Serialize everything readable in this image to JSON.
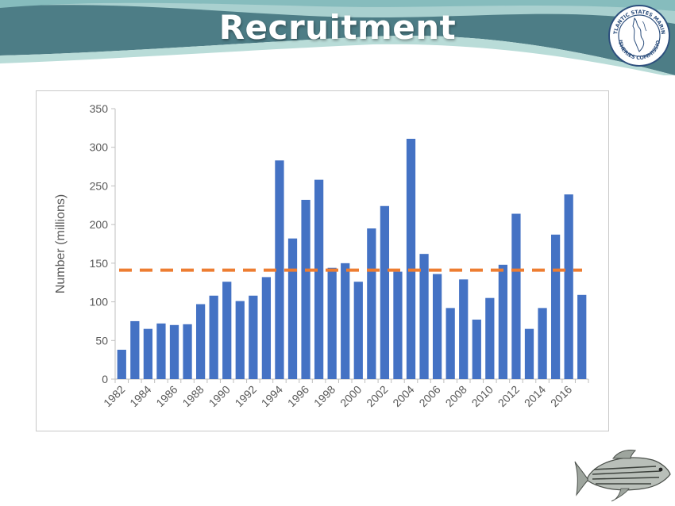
{
  "slide": {
    "title": "Recruitment"
  },
  "logo": {
    "name": "atlantic-states-marine-fisheries-commission-seal",
    "text": "ATLANTIC STATES MARINE FISHERIES COMMISSION"
  },
  "fish": {
    "icon": "striped-bass-icon"
  },
  "colors": {
    "bar": "#4472C4",
    "reference_line": "#ED7D31",
    "header_dark": "#4d7d86",
    "header_light": "#a9d0cf"
  },
  "chart_data": {
    "type": "bar",
    "title": "",
    "xlabel": "",
    "ylabel": "Number (millions)",
    "ylim": [
      0,
      350
    ],
    "yticks": [
      0,
      50,
      100,
      150,
      200,
      250,
      300,
      350
    ],
    "grid": false,
    "categories": [
      "1982",
      "1983",
      "1984",
      "1985",
      "1986",
      "1987",
      "1988",
      "1989",
      "1990",
      "1991",
      "1992",
      "1993",
      "1994",
      "1995",
      "1996",
      "1997",
      "1998",
      "1999",
      "2000",
      "2001",
      "2002",
      "2003",
      "2004",
      "2005",
      "2006",
      "2007",
      "2008",
      "2009",
      "2010",
      "2011",
      "2012",
      "2013",
      "2014",
      "2015",
      "2016",
      "2017"
    ],
    "xtick_labels": [
      "1982",
      "1984",
      "1986",
      "1988",
      "1990",
      "1992",
      "1994",
      "1996",
      "1998",
      "2000",
      "2002",
      "2004",
      "2006",
      "2008",
      "2010",
      "2012",
      "2014",
      "2016"
    ],
    "values": [
      38,
      75,
      65,
      72,
      70,
      71,
      97,
      108,
      126,
      101,
      108,
      132,
      283,
      182,
      232,
      258,
      144,
      150,
      126,
      195,
      224,
      139,
      311,
      162,
      136,
      92,
      129,
      77,
      105,
      148,
      214,
      65,
      92,
      187,
      239,
      109
    ],
    "reference_line": {
      "value": 141,
      "style": "dashed"
    }
  }
}
